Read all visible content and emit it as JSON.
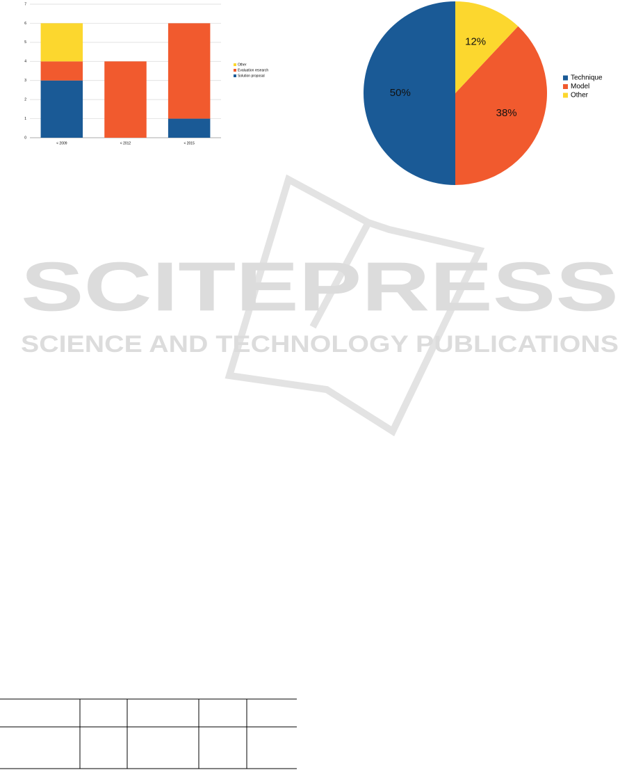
{
  "chart_data": [
    {
      "type": "bar",
      "stacked": true,
      "categories": [
        "< 2009",
        "< 2012",
        "< 2015"
      ],
      "series": [
        {
          "name": "Solution proposal",
          "color": "#1a5a96",
          "values": [
            3,
            0,
            1
          ]
        },
        {
          "name": "Evaluation research",
          "color": "#f15a2e",
          "values": [
            1,
            4,
            5
          ]
        },
        {
          "name": "Other",
          "color": "#fcd72e",
          "values": [
            2,
            0,
            0
          ]
        }
      ],
      "ylim": [
        0,
        7
      ],
      "yticks": [
        0,
        1,
        2,
        3,
        4,
        5,
        6,
        7
      ],
      "grid": true,
      "legend": "right"
    },
    {
      "type": "pie",
      "categories": [
        "Technique",
        "Model",
        "Other"
      ],
      "values": [
        50,
        38,
        12
      ],
      "value_labels": [
        "50%",
        "38%",
        "12%"
      ],
      "colors": [
        "#1a5a96",
        "#f15a2e",
        "#fcd72e"
      ],
      "legend": "right"
    }
  ],
  "watermark": {
    "title": "SCITEPRESS",
    "subtitle": "SCIENCE AND TECHNOLOGY PUBLICATIONS"
  }
}
